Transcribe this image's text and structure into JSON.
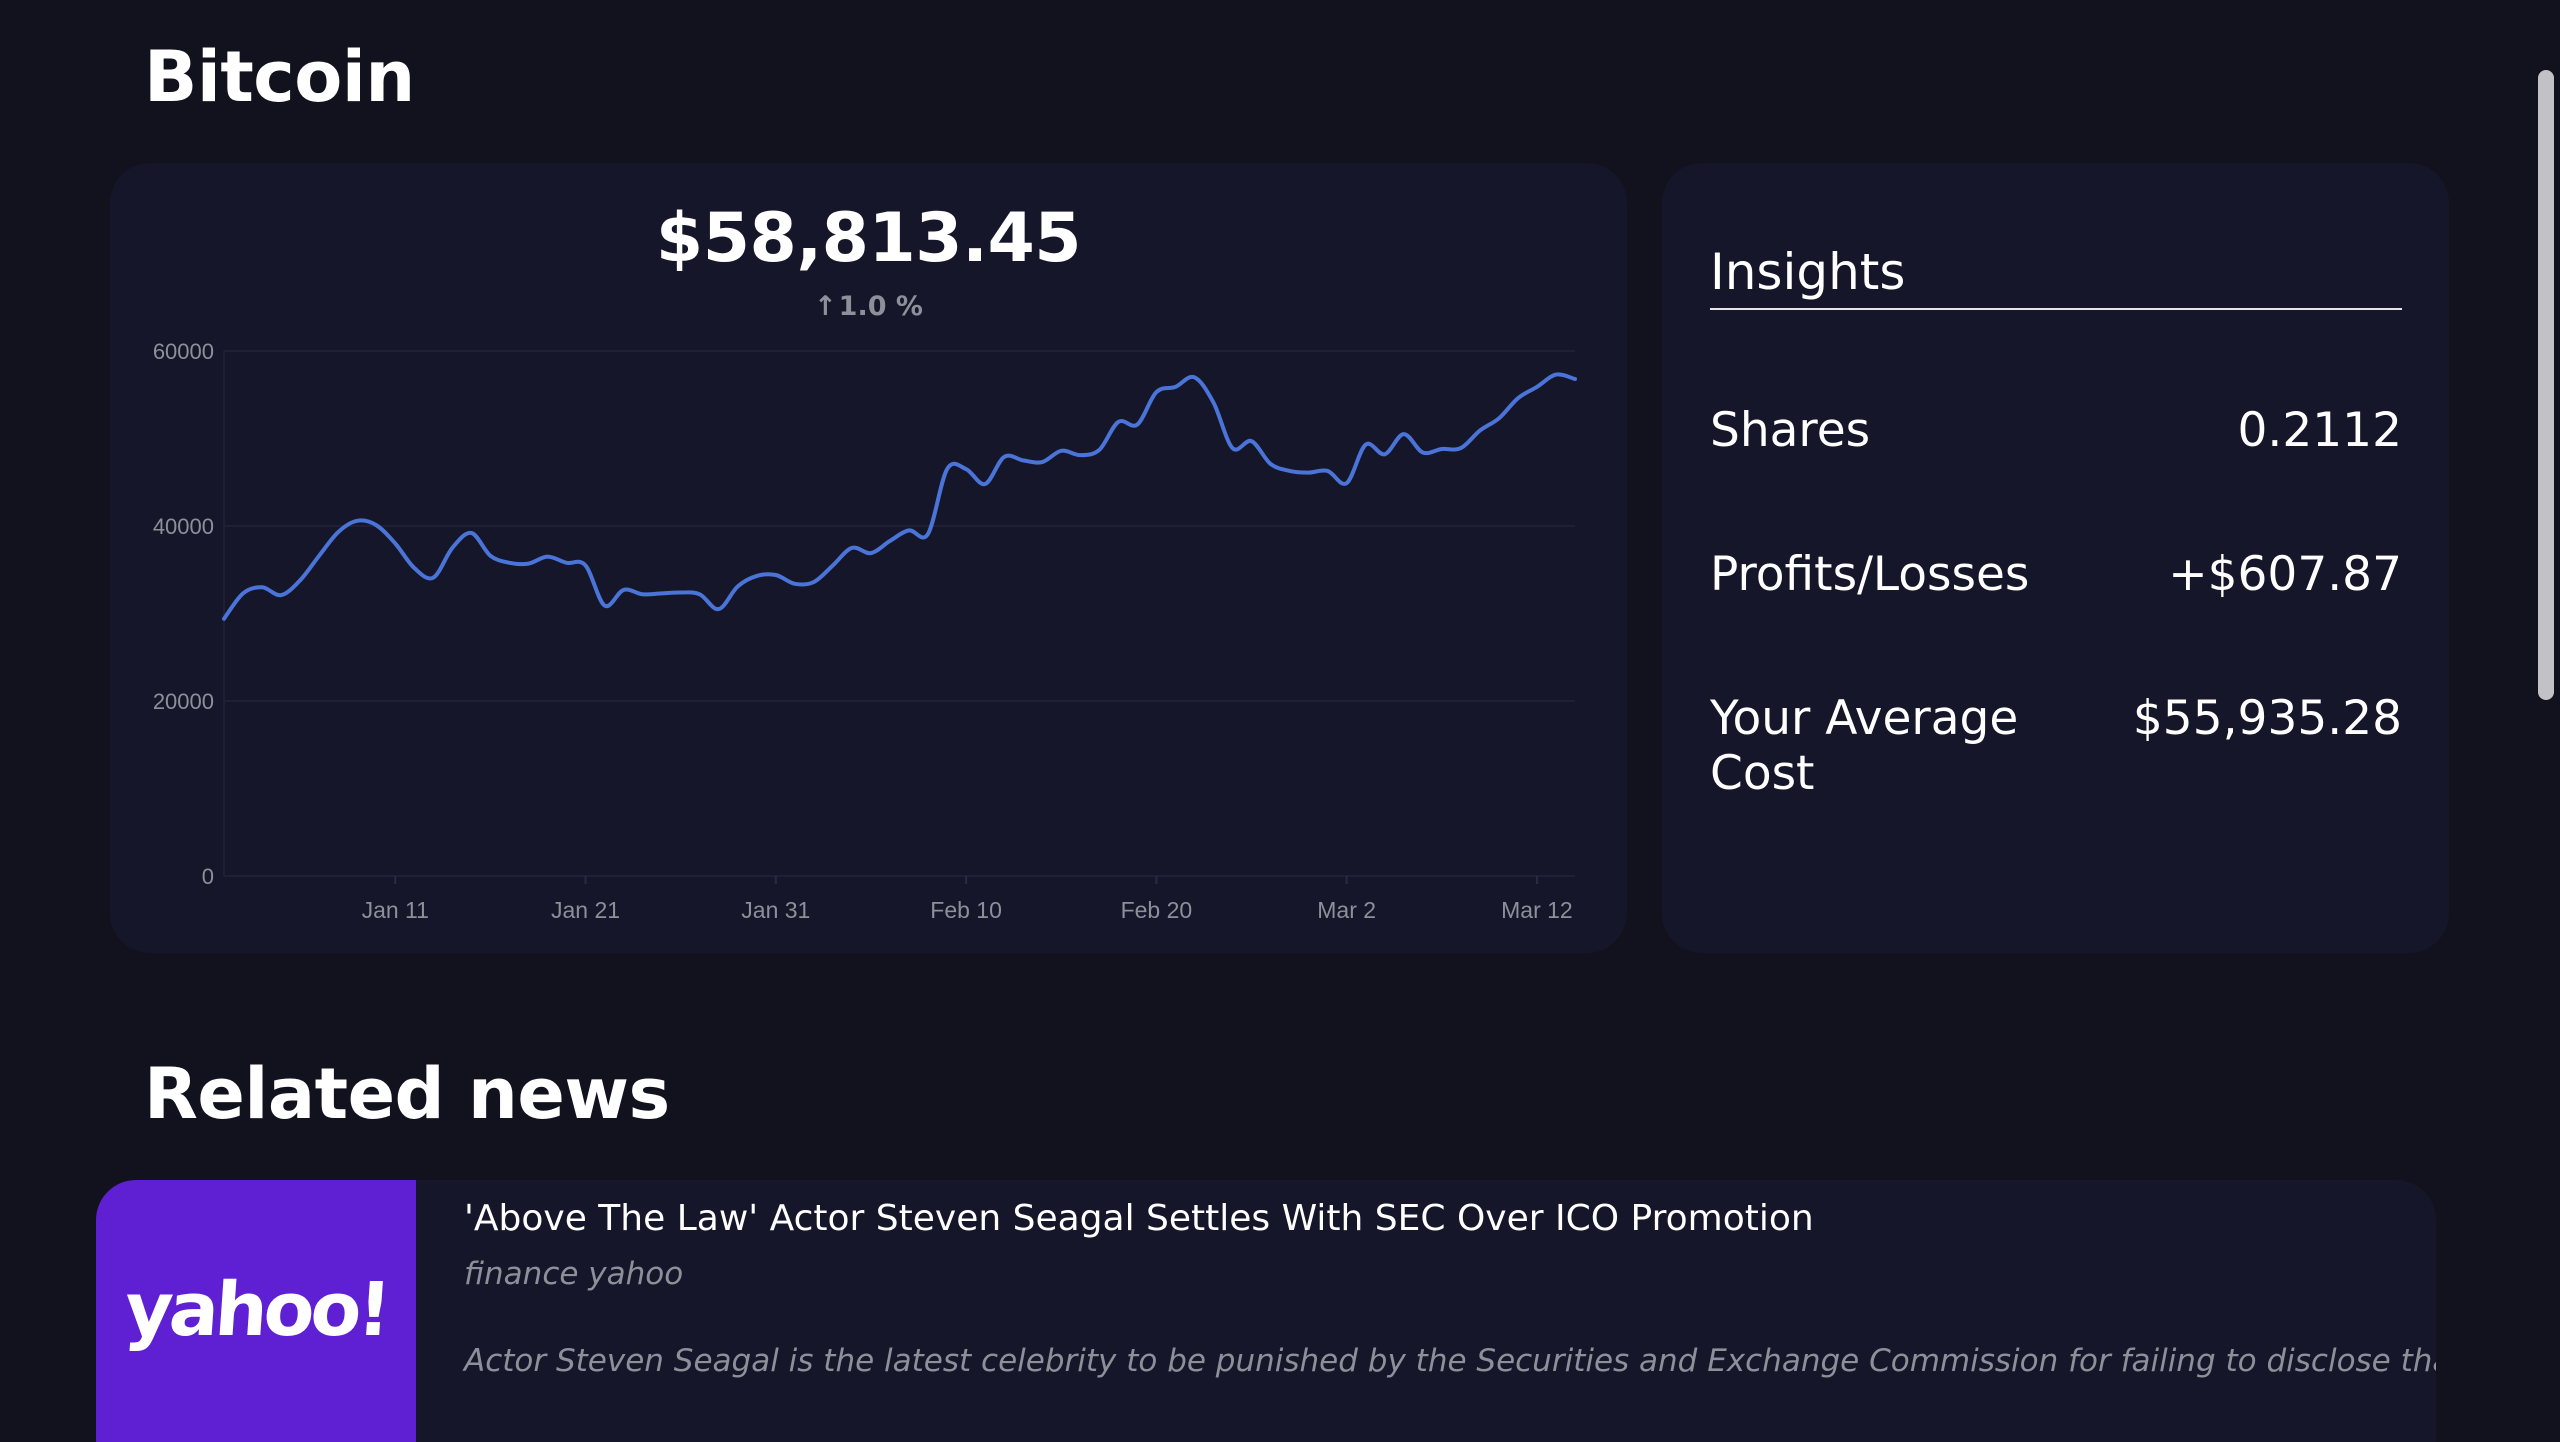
{
  "coin": {
    "name": "Bitcoin"
  },
  "price_card": {
    "price": "$58,813.45",
    "change_arrow": "↑",
    "change": "1.0 %"
  },
  "chart_data": {
    "type": "line",
    "ylim": [
      0,
      60000
    ],
    "yticks": [
      "60000",
      "40000",
      "20000",
      "0"
    ],
    "xticks": [
      "Jan 11",
      "Jan 21",
      "Jan 31",
      "Feb 10",
      "Feb 20",
      "Mar 2",
      "Mar 12"
    ],
    "line_color": "#4a74d8",
    "x_start": "2021-01-02",
    "series": [
      {
        "values": [
          29400,
          32300,
          33000,
          32100,
          33800,
          36600,
          39300,
          40600,
          40100,
          38000,
          35200,
          34100,
          37500,
          39200,
          36600,
          35800,
          35700,
          36500,
          35800,
          35500,
          30900,
          32700,
          32200,
          32300,
          32400,
          32200,
          30500,
          33100,
          34300,
          34400,
          33400,
          33600,
          35500,
          37500,
          36900,
          38300,
          39500,
          39100,
          46500,
          46500,
          44800,
          47900,
          47500,
          47300,
          48600,
          48100,
          48700,
          51900,
          51600,
          55300,
          55900,
          57000,
          54100,
          48900,
          49700,
          47100,
          46300,
          46100,
          46300,
          44900,
          49300,
          48200,
          50500,
          48400,
          48800,
          48900,
          50900,
          52300,
          54600,
          55900,
          57300,
          56800
        ]
      }
    ],
    "grid": true
  },
  "insights": {
    "title": "Insights",
    "rows": [
      {
        "label": "Shares",
        "value": "0.2112"
      },
      {
        "label": "Profits/Losses",
        "value": "+$607.87"
      },
      {
        "label": "Your Average Cost",
        "value": "$55,935.28"
      }
    ]
  },
  "related": {
    "title": "Related news",
    "articles": [
      {
        "thumb_text": "yahoo!",
        "thumb_color": "#5f1fd3",
        "headline": "'Above The Law' Actor Steven Seagal Settles With SEC Over ICO Promotion",
        "source": "finance yahoo",
        "summary": "Actor Steven Seagal is the latest celebrity to be punished by the Securities and Exchange Commission for failing to disclose that he was being paid to ..."
      }
    ]
  }
}
